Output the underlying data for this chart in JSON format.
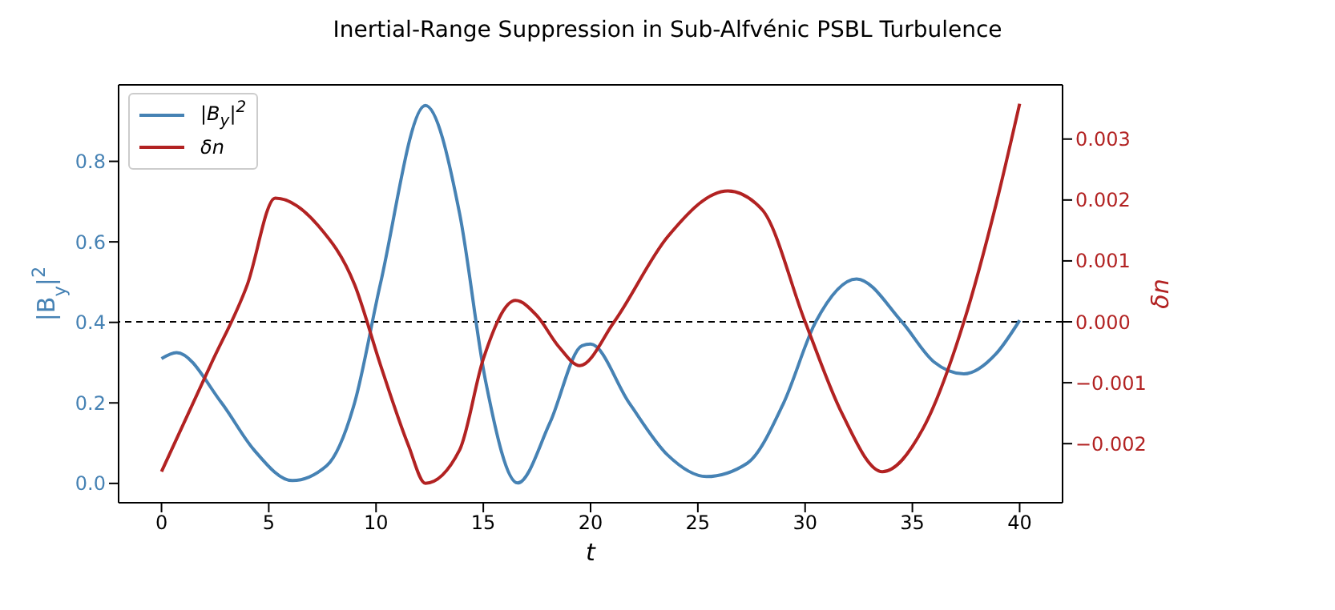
{
  "chart_data": {
    "type": "line",
    "title": "Inertial-Range Suppression in Sub-Alfvénic PSBL Turbulence",
    "xlabel": "t",
    "ylabel": "|B$_{y}$|$^{2}$",
    "y2label": "δn",
    "series": [
      {
        "name": "|B$_{y}$|$^{2}$",
        "color": "#4682b4",
        "x": [
          0,
          0.7,
          2.8,
          4.3,
          6.1,
          7.7,
          9.0,
          10.2,
          12.3,
          13.9,
          15.1,
          16.6,
          18.1,
          19.6,
          20.0,
          21.8,
          23.6,
          25.4,
          27.3,
          29.0,
          30.5,
          32.4,
          34.5,
          36.0,
          37.4,
          38.9,
          40
        ],
        "values": [
          0.31,
          0.325,
          0.2,
          0.084,
          0.007,
          0.044,
          0.2,
          0.495,
          0.939,
          0.669,
          0.256,
          0.001,
          0.15,
          0.342,
          0.346,
          0.2,
          0.07,
          0.017,
          0.05,
          0.2,
          0.402,
          0.508,
          0.402,
          0.302,
          0.272,
          0.322,
          0.405
        ]
      },
      {
        "name": "δn",
        "color": "#b22222",
        "axis": "y2",
        "x": [
          0,
          2.3,
          4.0,
          5.3,
          7.3,
          9.0,
          10.2,
          11.5,
          12.3,
          13.9,
          15.0,
          16.5,
          17.5,
          18.5,
          19.5,
          21.1,
          23.6,
          26.4,
          28.0,
          30.0,
          31.7,
          33.6,
          35.5,
          37.4,
          38.9,
          40
        ],
        "values": [
          -0.00246,
          -0.0007,
          0.00061,
          0.00203,
          0.00158,
          0.00061,
          -0.0007,
          -0.00202,
          -0.00265,
          -0.0021,
          -0.00061,
          0.00035,
          0.0001,
          -0.0004,
          -0.00072,
          0,
          0.0014,
          0.00215,
          0.00184,
          0,
          -0.00149,
          -0.00246,
          -0.00175,
          0,
          0.00193,
          0.00358
        ]
      }
    ],
    "xlim": [
      -2,
      42
    ],
    "xticks": [
      0,
      5,
      10,
      15,
      20,
      25,
      30,
      35,
      40
    ],
    "ylim": [
      -0.048,
      0.99
    ],
    "yticks": [
      {
        "value": 0,
        "label": "0.0"
      },
      {
        "value": 0.2,
        "label": "0.2"
      },
      {
        "value": 0.4,
        "label": "0.4"
      },
      {
        "value": 0.6,
        "label": "0.6"
      },
      {
        "value": 0.8,
        "label": "0.8"
      }
    ],
    "y2lim": [
      -0.00297,
      0.00389
    ],
    "y2ticks": [
      {
        "value": -0.002,
        "label": "−0.002"
      },
      {
        "value": -0.001,
        "label": "−0.001"
      },
      {
        "value": 0,
        "label": "0.000"
      },
      {
        "value": 0.001,
        "label": "0.001"
      },
      {
        "value": 0.002,
        "label": "0.002"
      },
      {
        "value": 0.003,
        "label": "0.003"
      }
    ],
    "ref_lines": [
      {
        "axis": "y2",
        "value": 0,
        "color": "#000000",
        "line_style": "dashed"
      }
    ],
    "legend": "top left",
    "grid": false,
    "marker": "none",
    "line_style": "solid"
  }
}
